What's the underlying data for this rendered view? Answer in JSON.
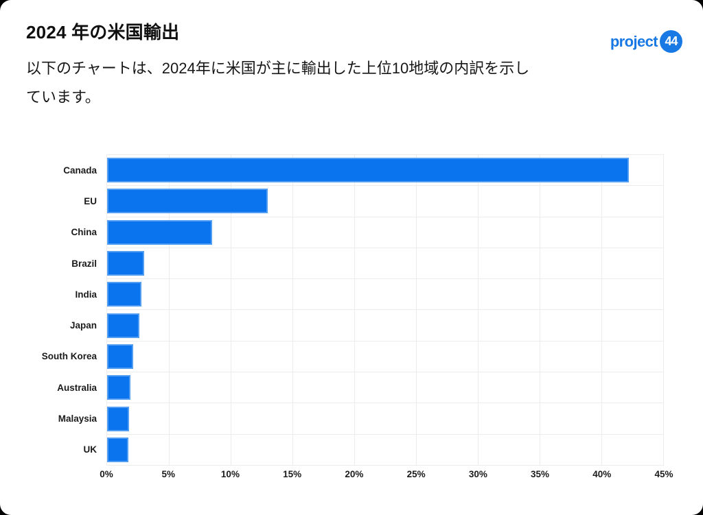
{
  "header": {
    "title": "2024 年の米国輸出",
    "subtitle": "以下のチャートは、2024年に米国が主に輸出した上位10地域の内訳を示しています。",
    "logo": {
      "text": "project",
      "badge": "44"
    }
  },
  "colors": {
    "bar_fill": "#0a73ee",
    "logo_blue": "#1878e4",
    "grid": "#ececec",
    "text": "#1b1b1b"
  },
  "chart_data": {
    "type": "bar",
    "orientation": "horizontal",
    "title": "2024 年の米国輸出",
    "xlabel": "",
    "ylabel": "",
    "unit": "%",
    "categories": [
      "Canada",
      "EU",
      "China",
      "Brazil",
      "India",
      "Japan",
      "South Korea",
      "Australia",
      "Malaysia",
      "UK"
    ],
    "values": [
      42.2,
      13.0,
      8.5,
      3.0,
      2.8,
      2.6,
      2.1,
      1.9,
      1.8,
      1.7
    ],
    "xlim": [
      0,
      45
    ],
    "x_ticks": [
      0,
      5,
      10,
      15,
      20,
      25,
      30,
      35,
      40,
      45
    ],
    "x_tick_labels": [
      "0%",
      "5%",
      "10%",
      "15%",
      "20%",
      "25%",
      "30%",
      "35%",
      "40%",
      "45%"
    ],
    "grid": true,
    "legend": false
  }
}
